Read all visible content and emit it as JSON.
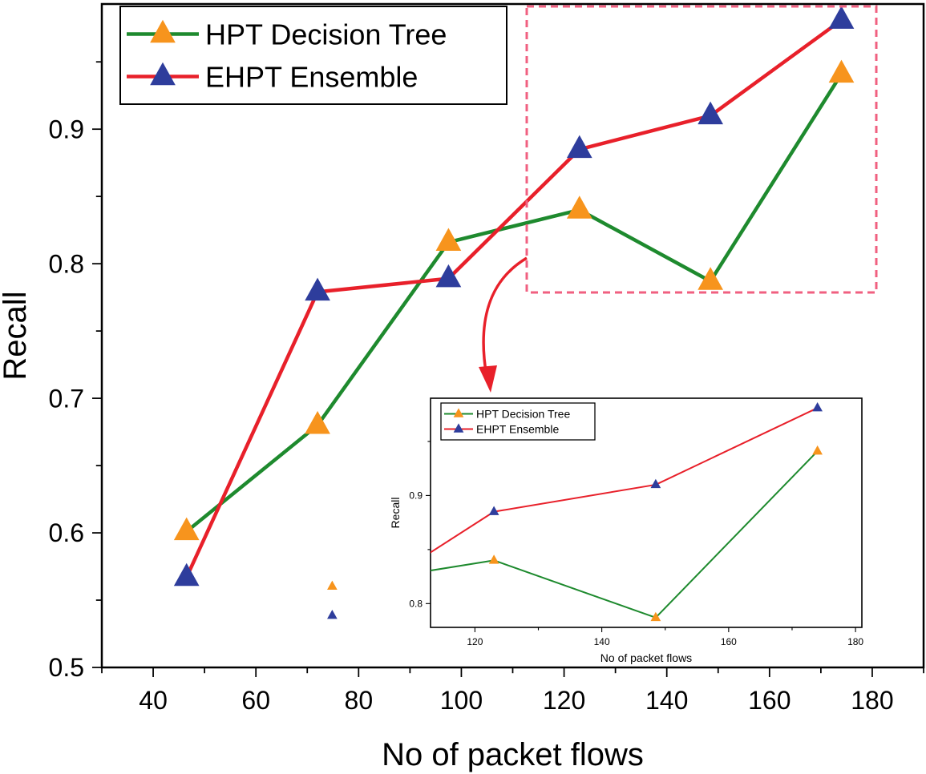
{
  "chart_data": [
    {
      "type": "line",
      "xlabel": "No of packet flows",
      "ylabel": "Recall",
      "xlim": [
        30,
        190
      ],
      "ylim": [
        0.5,
        0.993
      ],
      "xticks": [
        40,
        60,
        80,
        100,
        120,
        140,
        160,
        180
      ],
      "yticks": [
        0.5,
        0.6,
        0.7,
        0.8,
        0.9
      ],
      "legend_position": "top-left",
      "x": [
        46.5,
        72,
        97.5,
        123,
        148.5,
        174
      ],
      "series": [
        {
          "name": "HPT Decision Tree",
          "values": [
            0.601,
            0.68,
            0.816,
            0.84,
            0.787,
            0.941
          ],
          "line_color": "#1e8a2e",
          "marker_color": "#f7941d",
          "marker": "triangle"
        },
        {
          "name": "EHPT Ensemble",
          "values": [
            0.567,
            0.779,
            0.789,
            0.885,
            0.91,
            0.981
          ],
          "line_color": "#e8202a",
          "marker_color": "#2e3d9c",
          "marker": "triangle"
        }
      ],
      "grid": false,
      "annotation": {
        "zoom_region": "dashed pink rectangle over x 123–174, with red arrow pointing to inset",
        "color": "#f06080"
      }
    },
    {
      "type": "line",
      "xlabel": "No of packet flows",
      "ylabel": "Recall",
      "xlim": [
        113,
        181
      ],
      "ylim": [
        0.778,
        0.99
      ],
      "xticks": [
        120,
        140,
        160,
        180
      ],
      "yticks": [
        0.8,
        0.9
      ],
      "legend_position": "top-left",
      "x": [
        97.5,
        123,
        148.5,
        174
      ],
      "series": [
        {
          "name": "HPT Decision Tree",
          "values": [
            0.816,
            0.84,
            0.787,
            0.941
          ],
          "line_color": "#1e8a2e",
          "marker_color": "#f7941d",
          "marker": "triangle"
        },
        {
          "name": "EHPT Ensemble",
          "values": [
            0.789,
            0.885,
            0.91,
            0.981
          ],
          "line_color": "#e8202a",
          "marker_color": "#2e3d9c",
          "marker": "triangle"
        }
      ],
      "grid": false
    }
  ]
}
